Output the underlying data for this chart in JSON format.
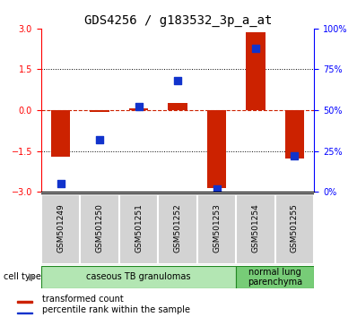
{
  "title": "GDS4256 / g183532_3p_a_at",
  "samples": [
    "GSM501249",
    "GSM501250",
    "GSM501251",
    "GSM501252",
    "GSM501253",
    "GSM501254",
    "GSM501255"
  ],
  "transformed_count": [
    -1.72,
    -0.05,
    0.08,
    0.25,
    -2.85,
    2.85,
    -1.78
  ],
  "percentile_rank": [
    5,
    32,
    52,
    68,
    2,
    88,
    22
  ],
  "ylim_left": [
    -3,
    3
  ],
  "ylim_right": [
    0,
    100
  ],
  "bar_color": "#cc2200",
  "dot_color": "#1133cc",
  "dotted_line_color": "#000000",
  "zero_line_color": "#cc2200",
  "cell_type_groups": [
    {
      "label": "caseous TB granulomas",
      "start": 0,
      "end": 4,
      "color": "#b3e6b3"
    },
    {
      "label": "normal lung\nparenchyma",
      "start": 5,
      "end": 6,
      "color": "#77cc77"
    }
  ],
  "legend_bar_label": "transformed count",
  "legend_dot_label": "percentile rank within the sample",
  "yticks_left": [
    -3,
    -1.5,
    0,
    1.5,
    3
  ],
  "yticks_right": [
    0,
    25,
    50,
    75,
    100
  ],
  "bar_width": 0.5,
  "dot_size": 40,
  "title_fontsize": 10,
  "tick_label_fontsize": 7,
  "sample_label_fontsize": 6.5,
  "cell_type_fontsize": 7,
  "legend_fontsize": 7
}
